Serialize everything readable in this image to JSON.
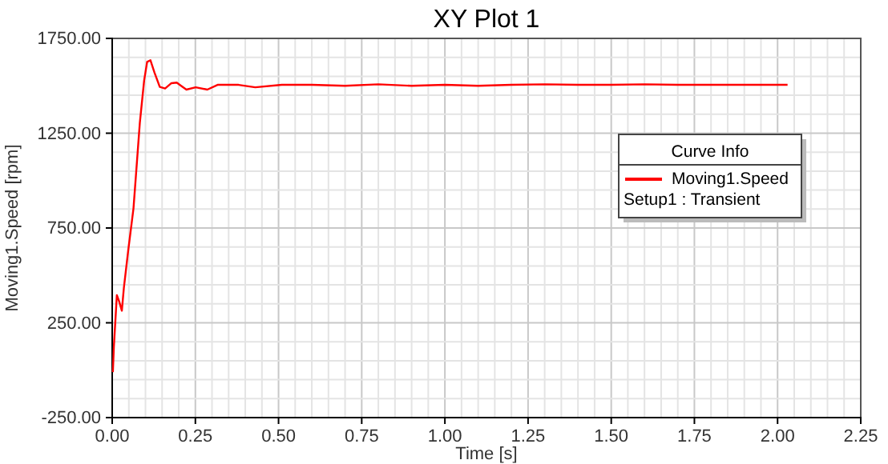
{
  "chart_data": {
    "type": "line",
    "title": "XY Plot 1",
    "xlabel": "Time [s]",
    "ylabel": "Moving1.Speed [rpm]",
    "legend_title": "Curve Info",
    "annotations": [
      "Setup1 : Transient"
    ],
    "xlim": [
      0,
      2.25
    ],
    "ylim": [
      -250,
      1750
    ],
    "xticks": [
      {
        "value": 0,
        "label": "0.00"
      },
      {
        "value": 0.25,
        "label": "0.25"
      },
      {
        "value": 0.5,
        "label": "0.50"
      },
      {
        "value": 0.75,
        "label": "0.75"
      },
      {
        "value": 1,
        "label": "1.00"
      },
      {
        "value": 1.25,
        "label": "1.25"
      },
      {
        "value": 1.5,
        "label": "1.50"
      },
      {
        "value": 1.75,
        "label": "1.75"
      },
      {
        "value": 2,
        "label": "2.00"
      },
      {
        "value": 2.25,
        "label": "2.25"
      }
    ],
    "yticks": [
      {
        "value": -250,
        "label": "-250.00"
      },
      {
        "value": 250,
        "label": "250.00"
      },
      {
        "value": 750,
        "label": "750.00"
      },
      {
        "value": 1250,
        "label": "1250.00"
      },
      {
        "value": 1750,
        "label": "1750.00"
      }
    ],
    "grid": true,
    "legend": "right",
    "line_style": "solid",
    "marker": "none",
    "series": [
      {
        "name": "Moving1.Speed",
        "color": "#ff0000",
        "x": [
          0.002,
          0.005,
          0.014,
          0.021,
          0.029,
          0.035,
          0.048,
          0.064,
          0.083,
          0.096,
          0.105,
          0.115,
          0.127,
          0.143,
          0.159,
          0.178,
          0.194,
          0.207,
          0.223,
          0.251,
          0.286,
          0.318,
          0.38,
          0.43,
          0.51,
          0.6,
          0.7,
          0.8,
          0.9,
          1.0,
          1.1,
          1.2,
          1.3,
          1.4,
          1.5,
          1.6,
          1.7,
          1.8,
          1.9,
          2.03
        ],
        "values": [
          -10,
          124,
          396,
          362,
          314,
          433,
          629,
          854,
          1303,
          1528,
          1626,
          1635,
          1570,
          1494,
          1486,
          1514,
          1517,
          1500,
          1480,
          1492,
          1480,
          1506,
          1505,
          1492,
          1505,
          1505,
          1500,
          1508,
          1500,
          1505,
          1500,
          1505,
          1508,
          1505,
          1505,
          1508,
          1505,
          1505,
          1505,
          1505
        ]
      }
    ]
  }
}
